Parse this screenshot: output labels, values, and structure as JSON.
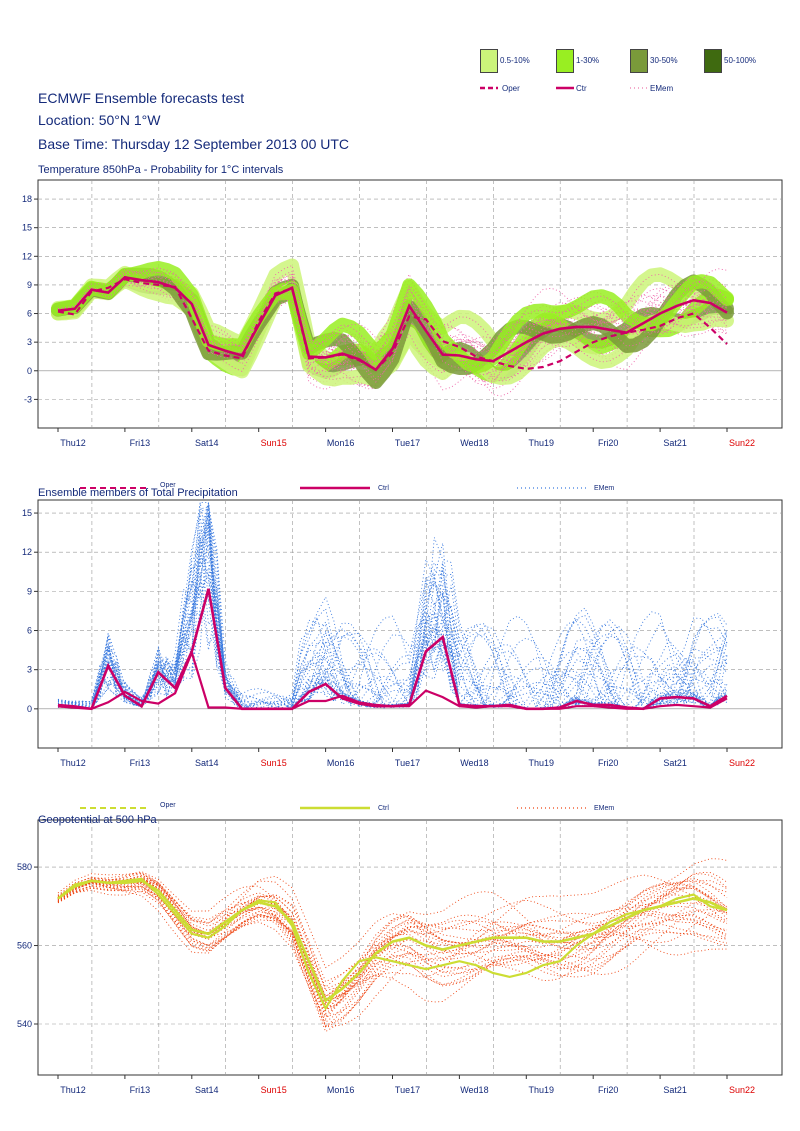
{
  "header": {
    "title": "ECMWF Ensemble forecasts test",
    "location": "Location:  50°N 1°W",
    "base_time": "Base Time: Thursday 12 September 2013 00 UTC"
  },
  "legend_top": {
    "prob_bins": [
      {
        "label": "0.5-10%",
        "color": "#ccf57a"
      },
      {
        "label": "1-30%",
        "color": "#99ee22"
      },
      {
        "label": "30-50%",
        "color": "#7a9a3a"
      },
      {
        "label": "50-100%",
        "color": "#3f6a10"
      }
    ],
    "lines": [
      {
        "label": "Oper",
        "style": "dashed",
        "color": "#cc0066"
      },
      {
        "label": "Ctr",
        "style": "solid",
        "color": "#cc0066"
      },
      {
        "label": "EMem",
        "style": "dotted",
        "color": "#ee77aa"
      }
    ]
  },
  "days": [
    "Thu12",
    "Fri13",
    "Sat14",
    "Sun15",
    "Mon16",
    "Tue17",
    "Wed18",
    "Thu19",
    "Fri20",
    "Sat21",
    "Sun22"
  ],
  "weekend_days": [
    "Sun15",
    "Sun22"
  ],
  "colors": {
    "axis_text": "#142a7a",
    "weekend_text": "#dd0000",
    "grid": "#999999",
    "ctrl": "#cc0066",
    "emem_temp": "#ee66aa",
    "emem_precip": "#3a7adf",
    "emem_geo": "#ee4411",
    "geo_line": "#ccdd33"
  },
  "chart_data": [
    {
      "type": "line",
      "title": "Temperature 850hPa - Probability for 1°C intervals",
      "x_unit": "days from Thu12 00 UTC",
      "ylim": [
        -6,
        20
      ],
      "yticks": [
        -3,
        0,
        3,
        6,
        9,
        12,
        15,
        18
      ],
      "grid": true,
      "series": [
        {
          "name": "Ctr",
          "x": [
            0,
            0.25,
            0.5,
            0.75,
            1,
            1.25,
            1.5,
            1.75,
            2,
            2.25,
            2.5,
            2.75,
            3,
            3.25,
            3.5,
            3.75,
            4,
            4.25,
            4.5,
            4.75,
            5,
            5.25,
            5.5,
            5.75,
            6,
            6.25,
            6.5,
            6.75,
            7,
            7.25,
            7.5,
            7.75,
            8,
            8.25,
            8.5,
            8.75,
            9,
            9.25,
            9.5,
            9.75,
            10
          ],
          "y": [
            6.3,
            6.5,
            8.5,
            8.2,
            9.8,
            9.5,
            9.3,
            8.7,
            7,
            2.7,
            2.1,
            1.6,
            4.8,
            7.9,
            8.7,
            1.5,
            1.4,
            1.8,
            1.2,
            0.1,
            2.3,
            6.8,
            4.2,
            1.7,
            1.6,
            1.2,
            1.0,
            2.0,
            3.0,
            3.9,
            4.4,
            4.6,
            4.6,
            4.3,
            4.0,
            5.0,
            6.0,
            6.8,
            7.4,
            7.1,
            6.1
          ]
        },
        {
          "name": "Oper",
          "x": [
            0,
            0.25,
            0.5,
            0.75,
            1,
            1.25,
            1.5,
            1.75,
            2,
            2.25,
            2.5,
            2.75,
            3,
            3.25,
            3.5,
            3.75,
            4,
            4.25,
            4.5,
            4.75,
            5,
            5.25,
            5.5,
            5.75,
            6,
            6.25,
            6.5,
            6.75,
            7,
            7.25,
            7.5,
            7.75,
            8,
            8.25,
            8.5,
            8.75,
            9,
            9.25,
            9.5,
            9.75,
            10
          ],
          "y": [
            6.2,
            5.9,
            8.3,
            8.7,
            9.6,
            9.2,
            9.0,
            8.8,
            5.5,
            2.1,
            1.6,
            1.3,
            5.2,
            8.1,
            8.6,
            1.3,
            1.4,
            1.7,
            1.1,
            0.1,
            1.9,
            5.7,
            5.4,
            3.1,
            2.5,
            1.5,
            1.0,
            0.5,
            0.2,
            0.4,
            1.0,
            2.0,
            3.0,
            3.6,
            4.0,
            4.3,
            4.7,
            5.5,
            6.0,
            4.5,
            2.8
          ]
        }
      ]
    },
    {
      "type": "line",
      "title": "Ensemble members of Total Precipitation",
      "ylim": [
        -3,
        16
      ],
      "yticks": [
        0,
        3,
        6,
        9,
        12,
        15
      ],
      "grid": true,
      "legend": [
        {
          "label": "Oper",
          "style": "dashed"
        },
        {
          "label": "Ctrl",
          "style": "solid"
        },
        {
          "label": "EMem",
          "style": "dotted"
        }
      ],
      "series": [
        {
          "name": "Ctrl",
          "x": [
            0,
            0.25,
            0.5,
            0.75,
            1,
            1.25,
            1.5,
            1.75,
            2,
            2.25,
            2.5,
            2.75,
            3,
            3.25,
            3.5,
            3.75,
            4,
            4.25,
            4.5,
            4.75,
            5,
            5.25,
            5.5,
            5.75,
            6,
            6.25,
            6.5,
            6.75,
            7,
            7.25,
            7.5,
            7.75,
            8,
            8.25,
            8.5,
            8.75,
            9,
            9.25,
            9.5,
            9.75,
            10
          ],
          "y": [
            0.2,
            0.1,
            0,
            3.3,
            1.0,
            0.2,
            2.8,
            1.6,
            4.4,
            9.2,
            1.6,
            0,
            0,
            0,
            0,
            1.3,
            1.9,
            0.8,
            0.4,
            0.2,
            0.2,
            0.3,
            4.4,
            5.5,
            0.3,
            0.2,
            0.2,
            0.3,
            0,
            0,
            0.1,
            0.6,
            0.3,
            0.3,
            0.1,
            0,
            0.8,
            0.9,
            0.8,
            0.2,
            1.0
          ]
        },
        {
          "name": "Oper",
          "x": [
            0,
            0.25,
            0.5,
            0.75,
            1,
            1.25,
            1.5,
            1.75,
            2,
            2.25,
            2.5,
            2.75,
            3,
            3.25,
            3.5,
            3.75,
            4,
            4.25,
            4.5,
            4.75,
            5,
            5.25,
            5.5,
            5.75,
            6,
            6.25,
            6.5,
            6.75,
            7,
            7.25,
            7.5,
            7.75,
            8,
            8.25,
            8.5,
            8.75,
            9,
            9.25,
            9.5,
            9.75,
            10
          ],
          "y": [
            0.3,
            0.2,
            0,
            0.5,
            1.3,
            0.6,
            0.4,
            1.2,
            4.3,
            0.1,
            0.1,
            0,
            0,
            0,
            0,
            0.6,
            0.6,
            1.0,
            0.5,
            0.3,
            0.2,
            0.2,
            1.4,
            0.9,
            0.2,
            0.1,
            0.2,
            0.2,
            0,
            0,
            0,
            0.2,
            0.2,
            0.1,
            0,
            0,
            0.2,
            0.3,
            0.2,
            0.1,
            0.8
          ]
        }
      ]
    },
    {
      "type": "line",
      "title": "Geopotential at 500 hPa",
      "ylim": [
        527,
        592
      ],
      "yticks": [
        540,
        560,
        580
      ],
      "grid": true,
      "legend": [
        {
          "label": "Oper",
          "style": "dashed"
        },
        {
          "label": "Ctrl",
          "style": "solid"
        },
        {
          "label": "EMem",
          "style": "dotted"
        }
      ],
      "series": [
        {
          "name": "Ctrl",
          "x": [
            0,
            0.25,
            0.5,
            0.75,
            1,
            1.25,
            1.5,
            1.75,
            2,
            2.25,
            2.5,
            2.75,
            3,
            3.25,
            3.5,
            3.75,
            4,
            4.25,
            4.5,
            4.75,
            5,
            5.25,
            5.5,
            5.75,
            6,
            6.25,
            6.5,
            6.75,
            7,
            7.25,
            7.5,
            7.75,
            8,
            8.25,
            8.5,
            8.75,
            9,
            9.25,
            9.5,
            9.75,
            10
          ],
          "y": [
            572,
            575,
            576.5,
            576,
            576,
            576.5,
            574,
            569,
            564,
            563,
            566,
            569,
            571,
            570,
            566,
            556,
            546,
            549,
            553,
            558,
            561,
            562,
            560,
            559,
            560,
            561,
            562,
            562,
            562,
            561,
            561,
            562,
            563,
            565,
            567,
            569,
            570,
            571,
            572,
            571,
            569
          ]
        },
        {
          "name": "Oper",
          "x": [
            0,
            0.25,
            0.5,
            0.75,
            1,
            1.25,
            1.5,
            1.75,
            2,
            2.25,
            2.5,
            2.75,
            3,
            3.25,
            3.5,
            3.75,
            4,
            4.25,
            4.5,
            4.75,
            5,
            5.25,
            5.5,
            5.75,
            6,
            6.25,
            6.5,
            6.75,
            7,
            7.25,
            7.5,
            7.75,
            8,
            8.25,
            8.5,
            8.75,
            9,
            9.25,
            9.5,
            9.75,
            10
          ],
          "y": [
            572,
            575.5,
            576.5,
            576,
            576.5,
            577,
            573,
            568,
            563,
            562,
            565,
            569,
            571.5,
            571,
            565,
            553,
            544,
            551,
            556,
            557,
            556,
            555,
            554,
            555,
            556,
            555,
            553,
            552,
            553,
            555,
            556,
            560,
            563,
            566,
            568,
            569,
            570,
            572,
            573,
            570,
            569
          ]
        }
      ]
    }
  ]
}
